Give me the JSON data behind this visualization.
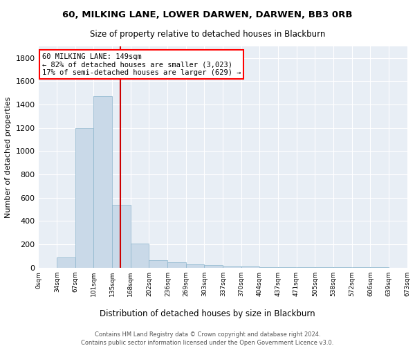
{
  "title": "60, MILKING LANE, LOWER DARWEN, DARWEN, BB3 0RB",
  "subtitle": "Size of property relative to detached houses in Blackburn",
  "xlabel": "Distribution of detached houses by size in Blackburn",
  "ylabel": "Number of detached properties",
  "bar_color": "#c9d9e8",
  "bar_edge_color": "#8ab4cc",
  "background_color": "#e8eef5",
  "grid_color": "#ffffff",
  "vline_color": "#cc0000",
  "vline_x": 149,
  "annotation_text": "60 MILKING LANE: 149sqm\n← 82% of detached houses are smaller (3,023)\n17% of semi-detached houses are larger (629) →",
  "bins": [
    0,
    34,
    67,
    101,
    135,
    168,
    202,
    236,
    269,
    303,
    337,
    370,
    404,
    437,
    471,
    505,
    538,
    572,
    606,
    639,
    673
  ],
  "values": [
    0,
    90,
    1200,
    1470,
    540,
    205,
    65,
    45,
    30,
    25,
    8,
    8,
    5,
    3,
    3,
    3,
    3,
    3,
    2,
    0
  ],
  "ylim": [
    0,
    1900
  ],
  "yticks": [
    0,
    200,
    400,
    600,
    800,
    1000,
    1200,
    1400,
    1600,
    1800
  ],
  "footer_line1": "Contains HM Land Registry data © Crown copyright and database right 2024.",
  "footer_line2": "Contains public sector information licensed under the Open Government Licence v3.0.",
  "figsize": [
    6.0,
    5.0
  ],
  "dpi": 100
}
